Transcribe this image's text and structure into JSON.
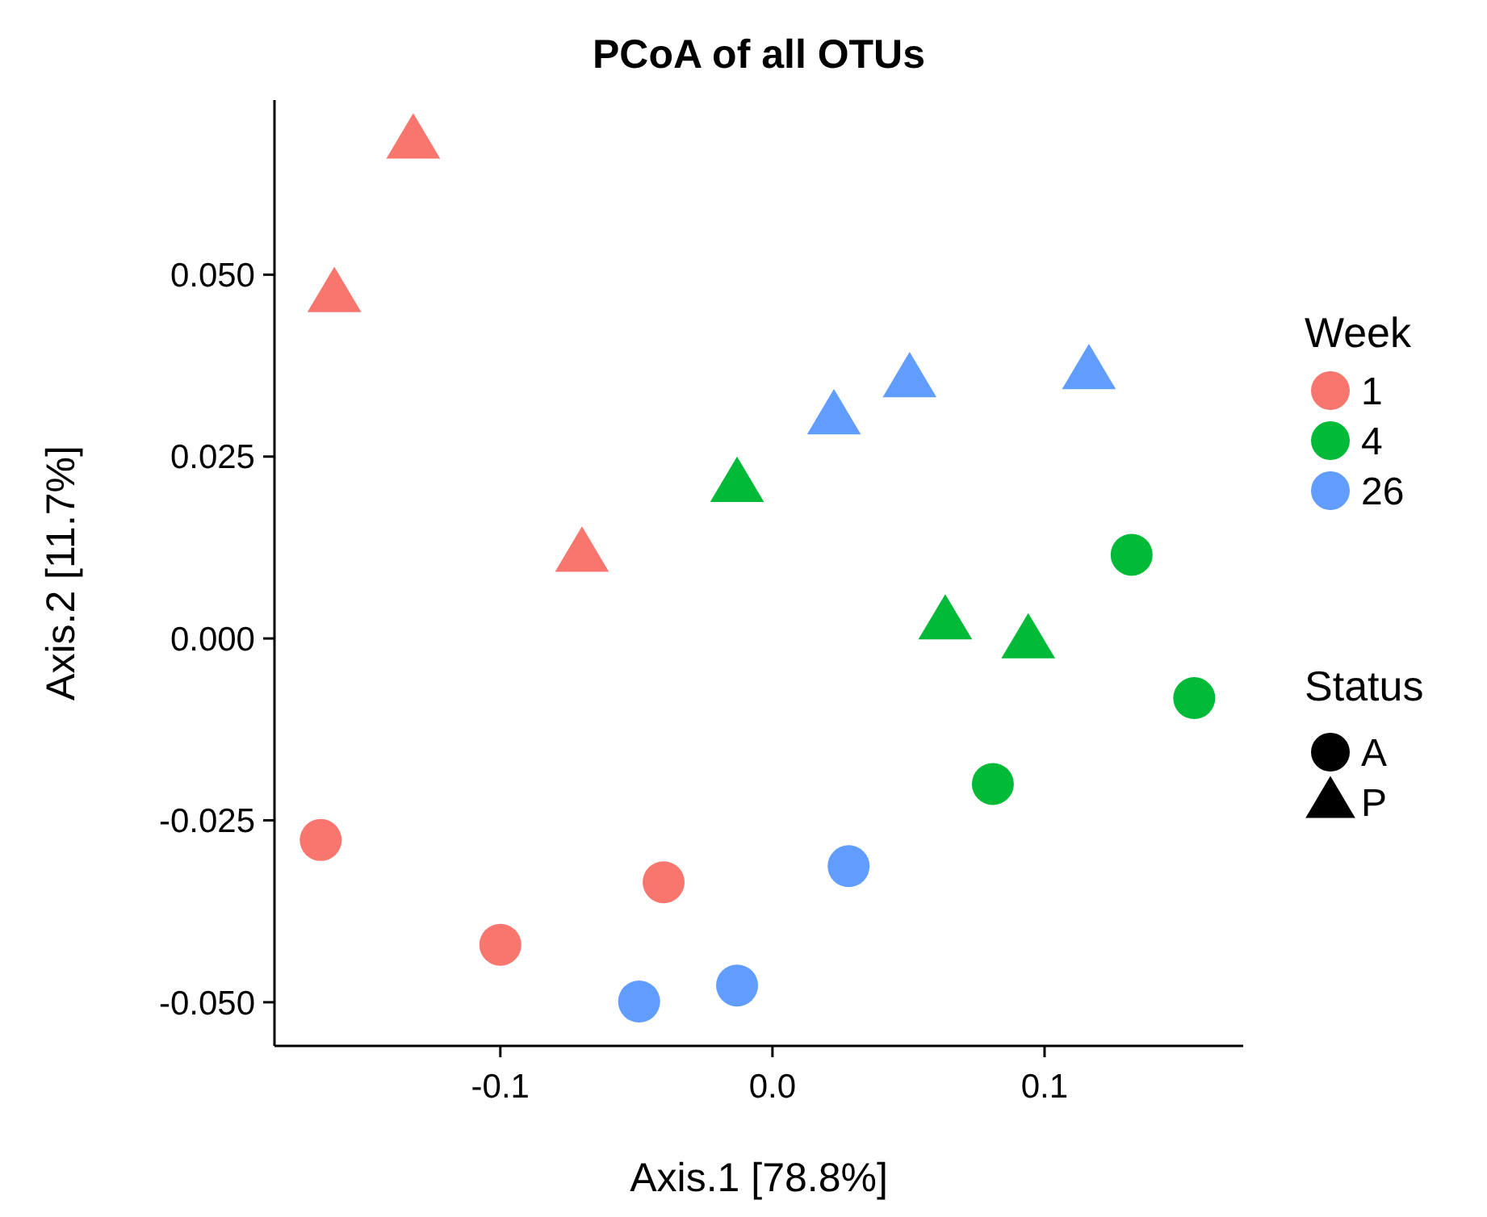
{
  "chart_data": {
    "type": "scatter",
    "title": "PCoA of all OTUs",
    "xlabel": "Axis.1   [78.8%]",
    "ylabel": "Axis.2   [11.7%]",
    "legend_title": "Week",
    "legend": "right",
    "grid": false,
    "xlim": [
      -0.183,
      0.173
    ],
    "ylim": [
      -0.056,
      0.074
    ],
    "xticks": [
      {
        "value": -0.1,
        "label": "-0.1"
      },
      {
        "value": 0,
        "label": "0.0"
      },
      {
        "value": 0.1,
        "label": "0.1"
      }
    ],
    "yticks": [
      {
        "value": -0.05,
        "label": "-0.050"
      },
      {
        "value": -0.025,
        "label": "-0.025"
      },
      {
        "value": 0,
        "label": "0.000"
      },
      {
        "value": 0.025,
        "label": "0.025"
      },
      {
        "value": 0.05,
        "label": "0.050"
      }
    ],
    "annotations": [
      "Status",
      "A",
      "P"
    ],
    "series": [
      {
        "name": "1",
        "color": "#f8766d",
        "marker": "circle",
        "x": [
          -0.166,
          -0.1,
          -0.04
        ],
        "values": [
          -0.0277,
          -0.0421,
          -0.0335
        ]
      },
      {
        "color": "#f8766d",
        "marker": "triangle",
        "x": [
          -0.132,
          -0.161,
          -0.07
        ],
        "values": [
          0.0683,
          0.0472,
          0.0115
        ]
      },
      {
        "name": "4",
        "color": "#00ba38",
        "marker": "circle",
        "x": [
          0.132,
          0.155,
          0.081
        ],
        "values": [
          0.0115,
          -0.0082,
          -0.02
        ]
      },
      {
        "color": "#00ba38",
        "marker": "triangle",
        "x": [
          -0.013,
          0.0635,
          0.094
        ],
        "values": [
          0.0211,
          0.0022,
          -0.0004
        ]
      },
      {
        "name": "26",
        "color": "#619cff",
        "marker": "circle",
        "x": [
          0.028,
          -0.013,
          -0.049
        ],
        "values": [
          -0.0313,
          -0.0477,
          -0.0499
        ]
      },
      {
        "color": "#619cff",
        "marker": "triangle",
        "x": [
          0.0226,
          0.0504,
          0.1163
        ],
        "values": [
          0.0304,
          0.0355,
          0.0366
        ]
      }
    ]
  }
}
